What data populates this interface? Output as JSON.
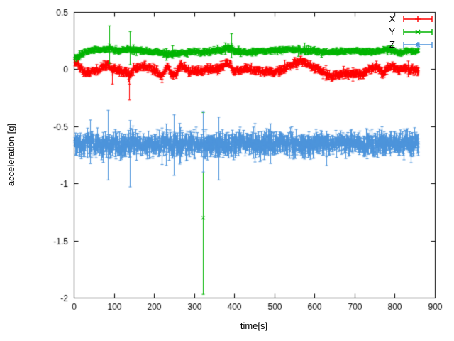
{
  "chart_data": {
    "type": "scatter",
    "title": "",
    "xlabel": "time[s]",
    "ylabel": "acceleration [g]",
    "xlim": [
      0,
      900
    ],
    "ylim": [
      -2,
      0.5
    ],
    "x_ticks": [
      0,
      100,
      200,
      300,
      400,
      500,
      600,
      700,
      800,
      900
    ],
    "y_ticks": [
      -2,
      -1.5,
      -1,
      -0.5,
      0,
      0.5
    ],
    "grid": false,
    "legend_position": "top-right",
    "background": "#ffffff",
    "axis_color": "#000000",
    "style": "points with errorbars",
    "sample_t_start": 2,
    "sample_t_end": 858,
    "sample_step": 1,
    "seed": 42,
    "series": [
      {
        "name": "X",
        "color": "#ff0000",
        "marker": "plus",
        "noise_sd": 0.012,
        "errorbar_halflen": 0.02,
        "mean_points": [
          [
            0,
            0.08
          ],
          [
            8,
            0.04
          ],
          [
            18,
            0.0
          ],
          [
            30,
            -0.04
          ],
          [
            45,
            -0.02
          ],
          [
            60,
            -0.01
          ],
          [
            70,
            0.02
          ],
          [
            85,
            0.03
          ],
          [
            95,
            0.0
          ],
          [
            110,
            -0.01
          ],
          [
            125,
            -0.02
          ],
          [
            138,
            -0.06
          ],
          [
            148,
            0.0
          ],
          [
            160,
            0.02
          ],
          [
            175,
            0.03
          ],
          [
            190,
            0.0
          ],
          [
            205,
            -0.02
          ],
          [
            220,
            -0.06
          ],
          [
            232,
            0.03
          ],
          [
            243,
            -0.05
          ],
          [
            255,
            -0.04
          ],
          [
            265,
            0.03
          ],
          [
            275,
            0.02
          ],
          [
            288,
            -0.03
          ],
          [
            300,
            -0.01
          ],
          [
            312,
            -0.02
          ],
          [
            325,
            -0.01
          ],
          [
            338,
            0.0
          ],
          [
            350,
            -0.01
          ],
          [
            362,
            0.0
          ],
          [
            375,
            0.04
          ],
          [
            388,
            0.05
          ],
          [
            398,
            -0.03
          ],
          [
            410,
            -0.01
          ],
          [
            425,
            0.0
          ],
          [
            440,
            0.0
          ],
          [
            455,
            -0.01
          ],
          [
            470,
            -0.02
          ],
          [
            485,
            -0.02
          ],
          [
            500,
            -0.03
          ],
          [
            515,
            -0.01
          ],
          [
            530,
            0.02
          ],
          [
            545,
            0.04
          ],
          [
            560,
            0.06
          ],
          [
            572,
            0.07
          ],
          [
            585,
            0.04
          ],
          [
            598,
            0.01
          ],
          [
            610,
            -0.01
          ],
          [
            625,
            -0.03
          ],
          [
            640,
            -0.07
          ],
          [
            655,
            -0.05
          ],
          [
            670,
            -0.04
          ],
          [
            685,
            -0.04
          ],
          [
            700,
            -0.03
          ],
          [
            715,
            -0.05
          ],
          [
            730,
            -0.02
          ],
          [
            745,
            0.01
          ],
          [
            758,
            0.02
          ],
          [
            770,
            -0.05
          ],
          [
            782,
            0.02
          ],
          [
            795,
            0.03
          ],
          [
            808,
            -0.02
          ],
          [
            820,
            0.01
          ],
          [
            835,
            0.0
          ],
          [
            858,
            -0.01
          ]
        ],
        "outliers": [
          {
            "t": 95,
            "v": -0.05,
            "lo": -0.13,
            "hi": 0.02
          },
          {
            "t": 138,
            "v": -0.13,
            "lo": -0.27,
            "hi": -0.02
          }
        ]
      },
      {
        "name": "Y",
        "color": "#00b400",
        "marker": "cross",
        "noise_sd": 0.008,
        "errorbar_halflen": 0.015,
        "mean_points": [
          [
            0,
            0.1
          ],
          [
            10,
            0.11
          ],
          [
            22,
            0.14
          ],
          [
            35,
            0.16
          ],
          [
            50,
            0.17
          ],
          [
            70,
            0.17
          ],
          [
            90,
            0.18
          ],
          [
            110,
            0.16
          ],
          [
            130,
            0.17
          ],
          [
            150,
            0.17
          ],
          [
            170,
            0.16
          ],
          [
            190,
            0.15
          ],
          [
            210,
            0.15
          ],
          [
            230,
            0.13
          ],
          [
            250,
            0.14
          ],
          [
            270,
            0.14
          ],
          [
            290,
            0.15
          ],
          [
            310,
            0.15
          ],
          [
            330,
            0.15
          ],
          [
            350,
            0.16
          ],
          [
            370,
            0.17
          ],
          [
            385,
            0.19
          ],
          [
            400,
            0.16
          ],
          [
            420,
            0.15
          ],
          [
            440,
            0.15
          ],
          [
            460,
            0.16
          ],
          [
            480,
            0.16
          ],
          [
            500,
            0.16
          ],
          [
            520,
            0.17
          ],
          [
            540,
            0.17
          ],
          [
            560,
            0.17
          ],
          [
            580,
            0.16
          ],
          [
            600,
            0.16
          ],
          [
            620,
            0.15
          ],
          [
            640,
            0.15
          ],
          [
            660,
            0.15
          ],
          [
            680,
            0.16
          ],
          [
            700,
            0.16
          ],
          [
            720,
            0.15
          ],
          [
            740,
            0.15
          ],
          [
            760,
            0.16
          ],
          [
            780,
            0.17
          ],
          [
            795,
            0.16
          ],
          [
            810,
            0.14
          ],
          [
            825,
            0.16
          ],
          [
            840,
            0.16
          ],
          [
            858,
            0.16
          ]
        ],
        "outliers": [
          {
            "t": 88,
            "v": 0.21,
            "lo": 0.05,
            "hi": 0.38
          },
          {
            "t": 140,
            "v": 0.19,
            "lo": 0.04,
            "hi": 0.33
          },
          {
            "t": 322,
            "v": -1.3,
            "lo": -1.97,
            "hi": -0.38
          },
          {
            "t": 392,
            "v": 0.22,
            "lo": 0.1,
            "hi": 0.31
          }
        ]
      },
      {
        "name": "Z",
        "color": "#4d94db",
        "marker": "star",
        "noise_sd": 0.03,
        "errorbar_halflen": 0.055,
        "mean_points": [
          [
            0,
            -0.66
          ],
          [
            40,
            -0.655
          ],
          [
            80,
            -0.66
          ],
          [
            120,
            -0.665
          ],
          [
            160,
            -0.655
          ],
          [
            200,
            -0.66
          ],
          [
            240,
            -0.66
          ],
          [
            280,
            -0.655
          ],
          [
            320,
            -0.66
          ],
          [
            360,
            -0.665
          ],
          [
            400,
            -0.66
          ],
          [
            440,
            -0.655
          ],
          [
            480,
            -0.66
          ],
          [
            520,
            -0.655
          ],
          [
            560,
            -0.66
          ],
          [
            600,
            -0.655
          ],
          [
            640,
            -0.655
          ],
          [
            680,
            -0.65
          ],
          [
            720,
            -0.655
          ],
          [
            760,
            -0.65
          ],
          [
            800,
            -0.65
          ],
          [
            840,
            -0.65
          ],
          [
            858,
            -0.65
          ]
        ],
        "outliers": [
          {
            "t": 85,
            "v": -0.6,
            "lo": -0.97,
            "hi": -0.36
          },
          {
            "t": 140,
            "v": -0.72,
            "lo": -1.03,
            "hi": -0.45
          },
          {
            "t": 250,
            "v": -0.66,
            "lo": -0.93,
            "hi": -0.4
          },
          {
            "t": 322,
            "v": -0.62,
            "lo": -0.9,
            "hi": -0.37
          },
          {
            "t": 360,
            "v": -0.68,
            "lo": -0.97,
            "hi": -0.42
          }
        ]
      }
    ]
  }
}
